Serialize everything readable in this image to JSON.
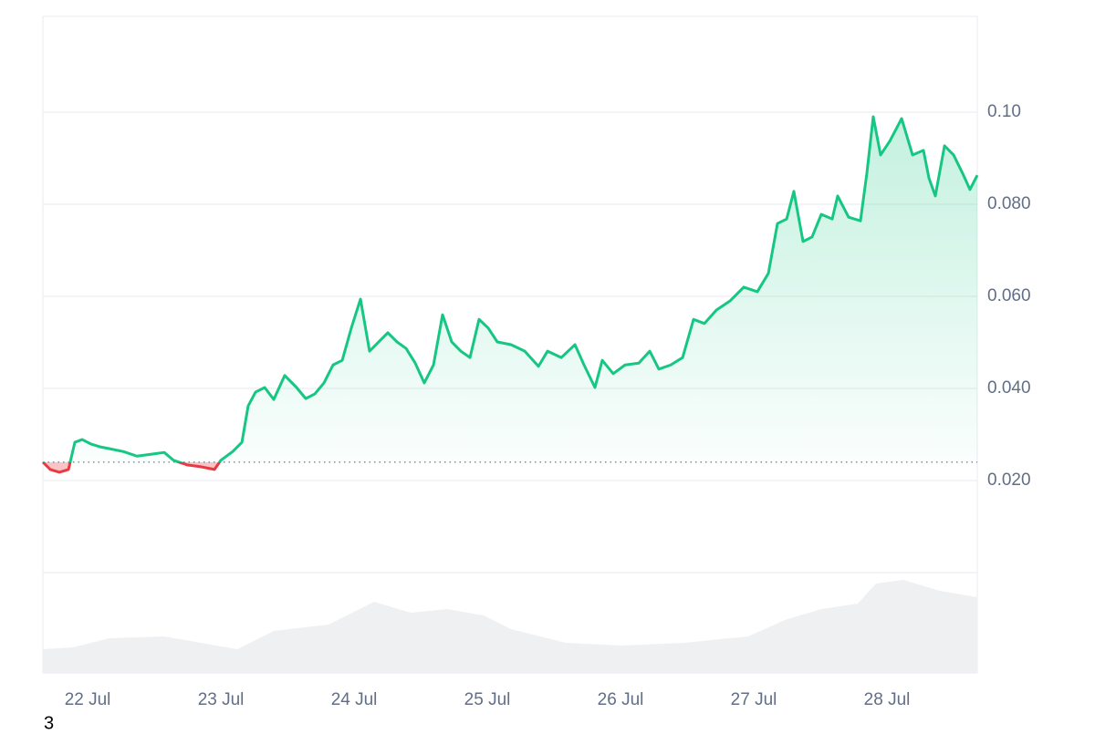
{
  "chart_data": {
    "type": "line",
    "x": [
      -0.336,
      -0.281,
      -0.212,
      -0.144,
      -0.096,
      -0.041,
      0.027,
      0.096,
      0.164,
      0.267,
      0.37,
      0.473,
      0.575,
      0.644,
      0.747,
      0.849,
      0.952,
      1.0,
      1.089,
      1.158,
      1.205,
      1.26,
      1.329,
      1.397,
      1.479,
      1.568,
      1.637,
      1.705,
      1.774,
      1.842,
      1.911,
      1.979,
      2.048,
      2.116,
      2.185,
      2.253,
      2.322,
      2.39,
      2.459,
      2.527,
      2.596,
      2.664,
      2.733,
      2.801,
      2.87,
      2.938,
      3.007,
      3.075,
      3.178,
      3.281,
      3.384,
      3.452,
      3.555,
      3.658,
      3.726,
      3.808,
      3.863,
      3.945,
      4.034,
      4.137,
      4.219,
      4.288,
      4.377,
      4.466,
      4.548,
      4.63,
      4.719,
      4.822,
      4.925,
      5.027,
      5.11,
      5.178,
      5.247,
      5.301,
      5.37,
      5.438,
      5.507,
      5.589,
      5.63,
      5.712,
      5.801,
      5.849,
      5.897,
      5.952,
      6.021,
      6.11,
      6.192,
      6.274,
      6.315,
      6.363,
      6.432,
      6.5,
      6.568,
      6.623,
      6.678
    ],
    "values": [
      0.024,
      0.0224,
      0.0218,
      0.0224,
      0.0283,
      0.0289,
      0.0279,
      0.0273,
      0.0269,
      0.0263,
      0.0253,
      0.0257,
      0.0261,
      0.0244,
      0.0234,
      0.023,
      0.0224,
      0.0244,
      0.0263,
      0.0283,
      0.0362,
      0.0392,
      0.0402,
      0.0376,
      0.0428,
      0.0402,
      0.0378,
      0.0388,
      0.0412,
      0.0451,
      0.0461,
      0.0531,
      0.0594,
      0.0481,
      0.0501,
      0.0521,
      0.0501,
      0.0487,
      0.0455,
      0.0412,
      0.0451,
      0.056,
      0.0501,
      0.0481,
      0.0467,
      0.055,
      0.0531,
      0.0501,
      0.0495,
      0.0481,
      0.0448,
      0.0481,
      0.0467,
      0.0495,
      0.0451,
      0.0402,
      0.0461,
      0.0432,
      0.0451,
      0.0455,
      0.0481,
      0.0442,
      0.0451,
      0.0467,
      0.055,
      0.0541,
      0.057,
      0.059,
      0.062,
      0.061,
      0.065,
      0.0758,
      0.0768,
      0.0828,
      0.0719,
      0.0729,
      0.0778,
      0.0768,
      0.0818,
      0.0772,
      0.0764,
      0.0867,
      0.099,
      0.0907,
      0.0937,
      0.0986,
      0.0907,
      0.0917,
      0.0857,
      0.0818,
      0.0927,
      0.0907,
      0.0867,
      0.0832,
      0.0863
    ],
    "baseline": 0.024,
    "up_color": "#16c784",
    "down_color": "#ea3943",
    "ylim": [
      0,
      0.12
    ],
    "yticks": [
      {
        "value": 0.1,
        "label": "0.10"
      },
      {
        "value": 0.08,
        "label": "0.080"
      },
      {
        "value": 0.06,
        "label": "0.060"
      },
      {
        "value": 0.04,
        "label": "0.040"
      },
      {
        "value": 0.02,
        "label": "0.020"
      }
    ],
    "xlim": [
      -0.336,
      6.678
    ],
    "xticks": [
      {
        "value": 0,
        "label": "22 Jul"
      },
      {
        "value": 1,
        "label": "23 Jul"
      },
      {
        "value": 2,
        "label": "24 Jul"
      },
      {
        "value": 3,
        "label": "25 Jul"
      },
      {
        "value": 4,
        "label": "26 Jul"
      },
      {
        "value": 5,
        "label": "27 Jul"
      },
      {
        "value": 6,
        "label": "28 Jul"
      }
    ],
    "grid": true,
    "volume": {
      "x": [
        -0.336,
        -0.11,
        0.164,
        0.575,
        0.849,
        1.123,
        1.397,
        1.808,
        2.151,
        2.425,
        2.699,
        2.973,
        3.178,
        3.589,
        4.0,
        4.479,
        4.959,
        5.233,
        5.507,
        5.781,
        5.918,
        6.123,
        6.397,
        6.678
      ],
      "values": [
        0.236,
        0.255,
        0.345,
        0.364,
        0.3,
        0.236,
        0.418,
        0.482,
        0.709,
        0.6,
        0.636,
        0.573,
        0.436,
        0.3,
        0.273,
        0.3,
        0.364,
        0.527,
        0.636,
        0.691,
        0.891,
        0.927,
        0.818,
        0.755
      ],
      "ylim": [
        0,
        1
      ],
      "color": "#eff0f2"
    },
    "footnote": "3"
  }
}
